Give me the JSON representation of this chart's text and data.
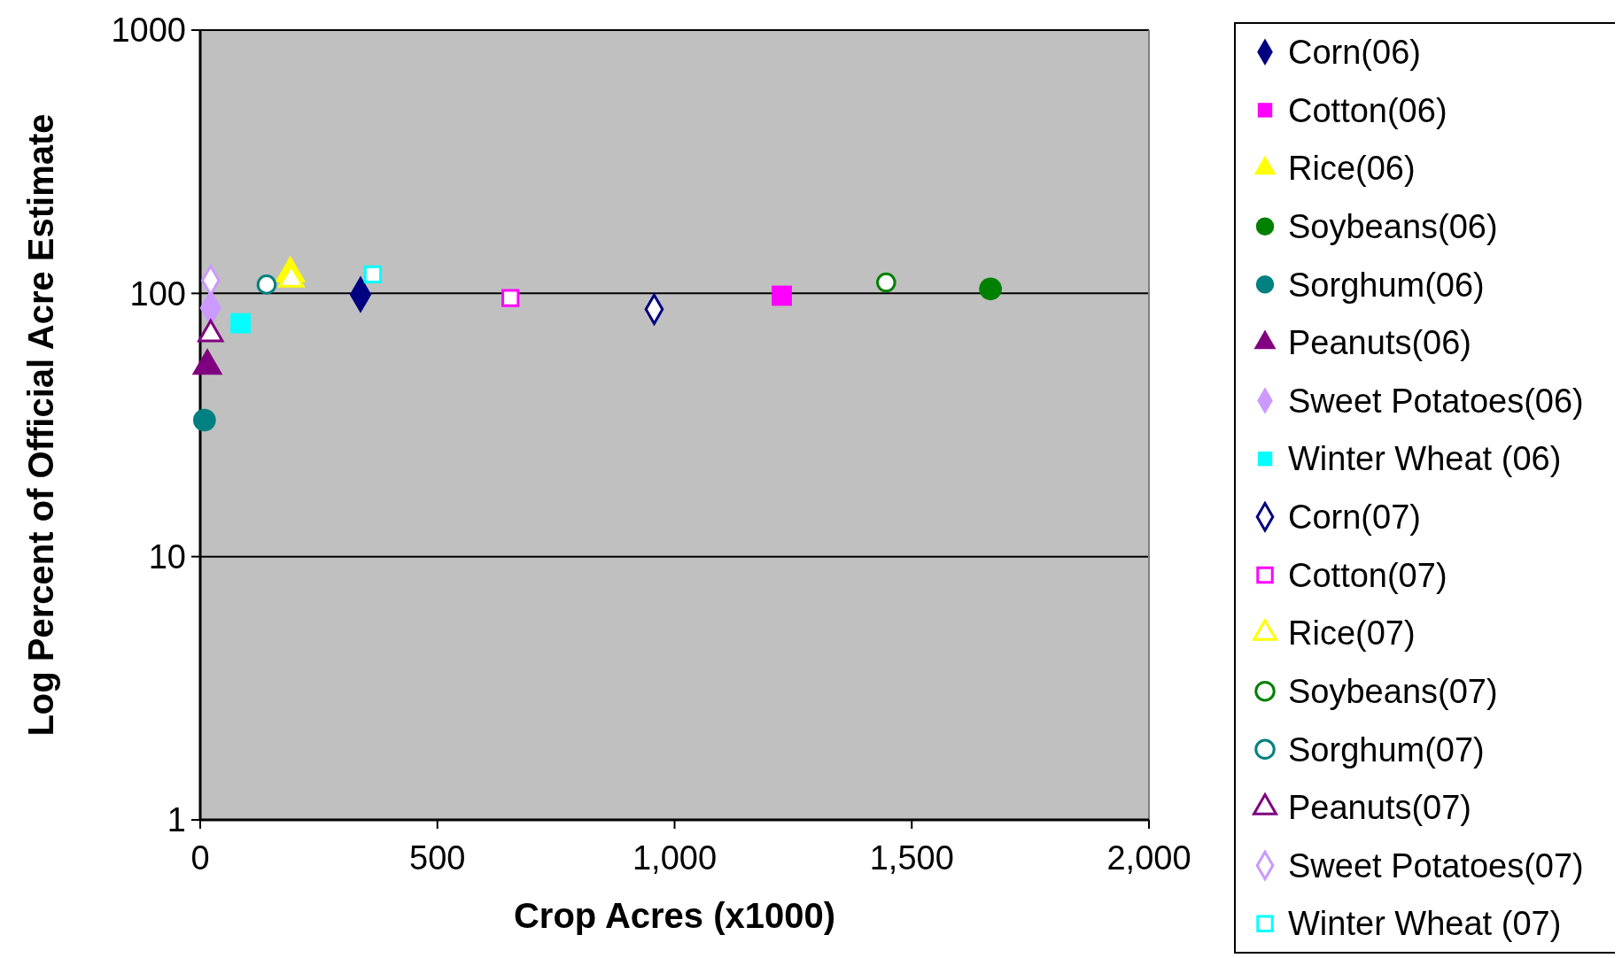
{
  "chart_data": {
    "type": "scatter",
    "xlabel": "Crop Acres (x1000)",
    "ylabel": "Log Percent of Official Acre Estimate",
    "log": "y",
    "grid": "y",
    "legend": "right",
    "xlim": [
      0,
      2000
    ],
    "xticks": [
      0,
      500,
      {
        "value": 1000,
        "label": "1,000"
      },
      {
        "value": 1500,
        "label": "1,500"
      },
      {
        "value": 2000,
        "label": "2,000"
      }
    ],
    "ylim": [
      1,
      1000
    ],
    "yticks": [
      1,
      10,
      100,
      1000
    ],
    "series": [
      {
        "name": "Corn(06)",
        "color": "#000080",
        "marker": "diamond",
        "x": [
          338
        ],
        "values": [
          99
        ]
      },
      {
        "name": "Cotton(06)",
        "color": "#ff00ff",
        "marker": "square",
        "x": [
          1226
        ],
        "values": [
          98
        ]
      },
      {
        "name": "Rice(06)",
        "color": "#ffff00",
        "marker": "triangle",
        "x": [
          190
        ],
        "values": [
          119
        ]
      },
      {
        "name": "Soybeans(06)",
        "color": "#008000",
        "marker": "circle",
        "x": [
          1666
        ],
        "values": [
          104
        ]
      },
      {
        "name": "Sorghum(06)",
        "color": "#008080",
        "marker": "circle",
        "x": [
          9
        ],
        "values": [
          33
        ]
      },
      {
        "name": "Peanuts(06)",
        "color": "#800080",
        "marker": "triangle",
        "x": [
          15
        ],
        "values": [
          53
        ]
      },
      {
        "name": "Sweet Potatoes(06)",
        "color": "#cc99ff",
        "marker": "diamond",
        "x": [
          22
        ],
        "values": [
          88
        ]
      },
      {
        "name": "Winter Wheat (06)",
        "color": "#00ffff",
        "marker": "square",
        "x": [
          85
        ],
        "values": [
          77
        ]
      },
      {
        "name": "Corn(07)",
        "color": "#000080",
        "marker": "diamond-open",
        "x": [
          957
        ],
        "values": [
          87
        ]
      },
      {
        "name": "Cotton(07)",
        "color": "#ff00ff",
        "marker": "square-open",
        "x": [
          654
        ],
        "values": [
          96
        ]
      },
      {
        "name": "Rice(07)",
        "color": "#ffff00",
        "marker": "triangle-open",
        "x": [
          192
        ],
        "values": [
          113
        ]
      },
      {
        "name": "Soybeans(07)",
        "color": "#008000",
        "marker": "circle-open",
        "x": [
          1446
        ],
        "values": [
          110
        ]
      },
      {
        "name": "Sorghum(07)",
        "color": "#008080",
        "marker": "circle-open",
        "x": [
          140
        ],
        "values": [
          108
        ]
      },
      {
        "name": "Peanuts(07)",
        "color": "#800080",
        "marker": "triangle-open",
        "x": [
          22
        ],
        "values": [
          70
        ]
      },
      {
        "name": "Sweet Potatoes(07)",
        "color": "#cc99ff",
        "marker": "diamond-open",
        "x": [
          22
        ],
        "values": [
          112
        ]
      },
      {
        "name": "Winter Wheat (07)",
        "color": "#00ffff",
        "marker": "square-open",
        "x": [
          364
        ],
        "values": [
          118
        ]
      }
    ]
  }
}
